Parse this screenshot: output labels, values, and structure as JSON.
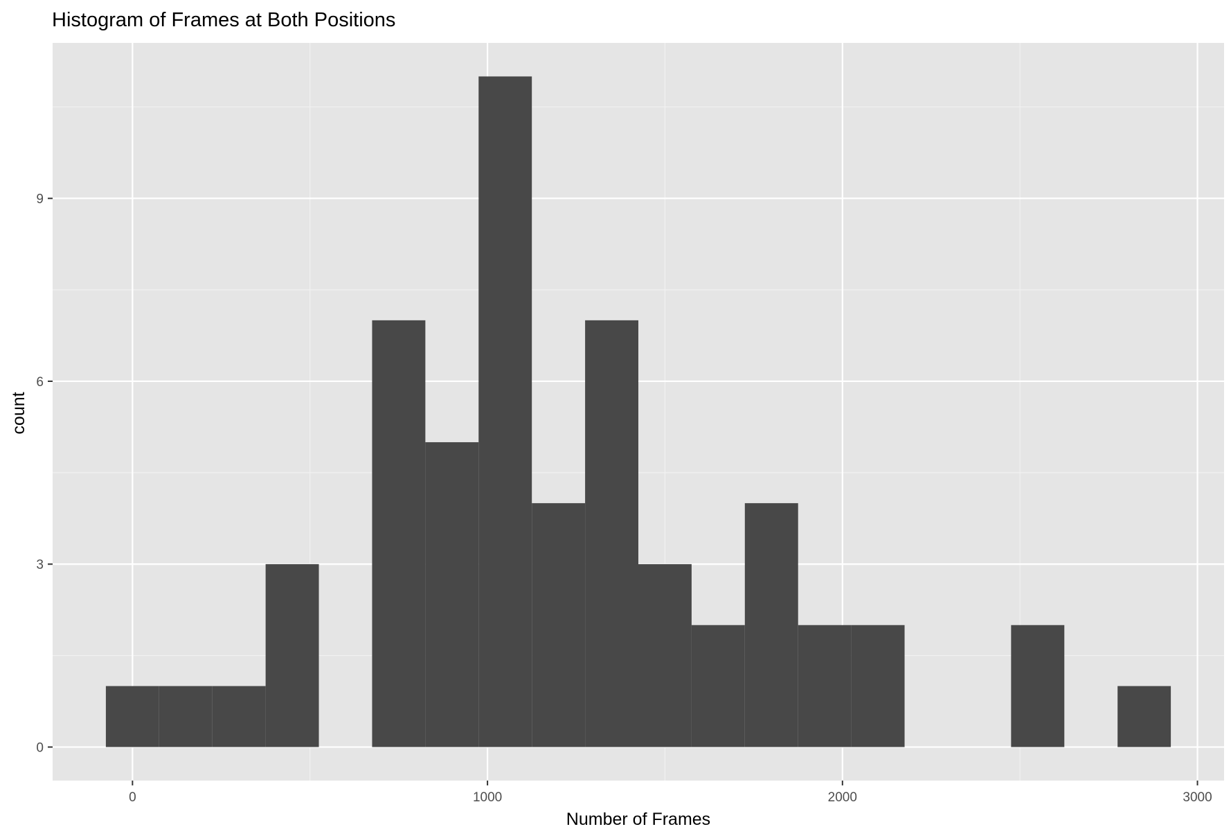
{
  "chart_data": {
    "type": "bar",
    "title": "Histogram of Frames at Both Positions",
    "xlabel": "Number of Frames",
    "ylabel": "count",
    "bin_width": 150,
    "bins": [
      {
        "x0": -75,
        "x1": 75,
        "count": 1
      },
      {
        "x0": 75,
        "x1": 225,
        "count": 1
      },
      {
        "x0": 225,
        "x1": 375,
        "count": 1
      },
      {
        "x0": 375,
        "x1": 525,
        "count": 3
      },
      {
        "x0": 525,
        "x1": 675,
        "count": 0
      },
      {
        "x0": 675,
        "x1": 825,
        "count": 7
      },
      {
        "x0": 825,
        "x1": 975,
        "count": 5
      },
      {
        "x0": 975,
        "x1": 1125,
        "count": 11
      },
      {
        "x0": 1125,
        "x1": 1275,
        "count": 4
      },
      {
        "x0": 1275,
        "x1": 1425,
        "count": 7
      },
      {
        "x0": 1425,
        "x1": 1575,
        "count": 3
      },
      {
        "x0": 1575,
        "x1": 1725,
        "count": 2
      },
      {
        "x0": 1725,
        "x1": 1875,
        "count": 4
      },
      {
        "x0": 1875,
        "x1": 2025,
        "count": 2
      },
      {
        "x0": 2025,
        "x1": 2175,
        "count": 2
      },
      {
        "x0": 2175,
        "x1": 2325,
        "count": 0
      },
      {
        "x0": 2325,
        "x1": 2475,
        "count": 0
      },
      {
        "x0": 2475,
        "x1": 2625,
        "count": 2
      },
      {
        "x0": 2625,
        "x1": 2775,
        "count": 0
      },
      {
        "x0": 2775,
        "x1": 2925,
        "count": 1
      }
    ],
    "xlim": [
      -225,
      3075
    ],
    "ylim": [
      -0.55,
      11.55
    ],
    "x_ticks": [
      0,
      1000,
      2000,
      3000
    ],
    "x_tick_labels": [
      "0",
      "1000",
      "2000",
      "3000"
    ],
    "x_minor_ticks": [
      500,
      1500,
      2500
    ],
    "y_ticks": [
      0,
      3,
      6,
      9
    ],
    "y_tick_labels": [
      "0",
      "3",
      "6",
      "9"
    ],
    "y_minor_ticks": [
      1.5,
      4.5,
      7.5,
      10.5
    ],
    "grid": true,
    "legend": "none",
    "colors": {
      "panel_bg": "#e5e5e5",
      "grid_major": "#ffffff",
      "grid_minor": "#f2f2f2",
      "bar_fill": "#484848",
      "tick_text": "#4d4d4d",
      "label_text": "#000000"
    }
  }
}
